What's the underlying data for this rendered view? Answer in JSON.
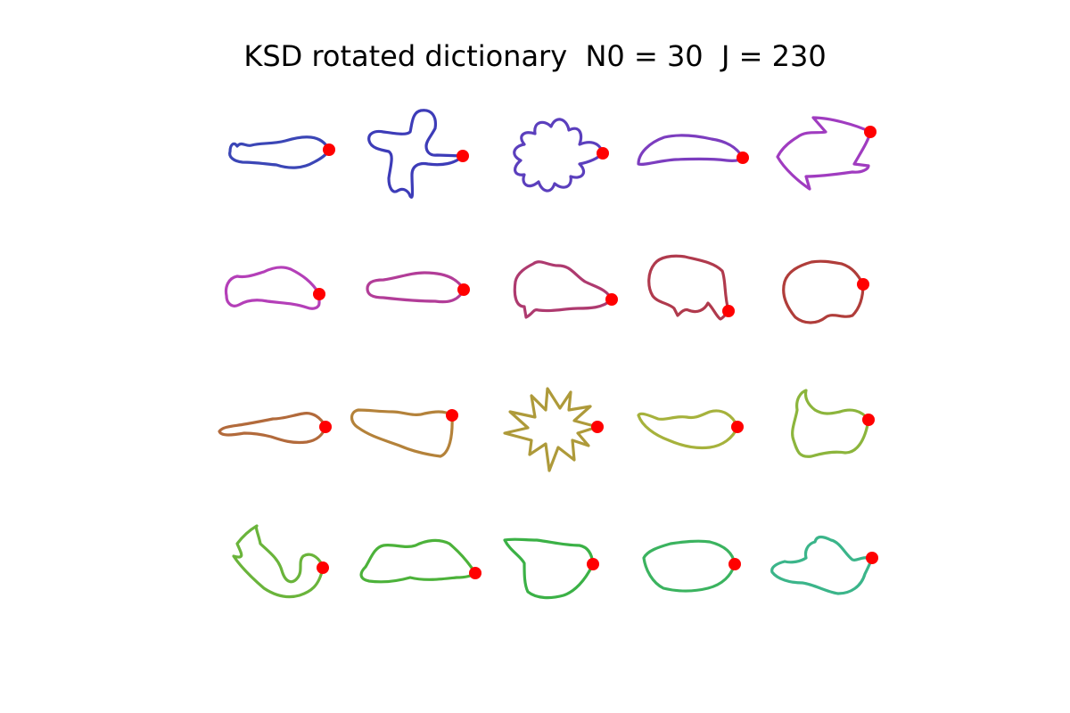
{
  "title": "KSD rotated dictionary  N0 = 30  J = 230",
  "marker_color": "#ff0000",
  "shapes": [
    {
      "name": "shape-r1c1-elongated-blob",
      "color": "#3b46b6"
    },
    {
      "name": "shape-r1c2-cross",
      "color": "#3d3cb8"
    },
    {
      "name": "shape-r1c3-flower",
      "color": "#5b3fbd"
    },
    {
      "name": "shape-r1c4-slender-leaf",
      "color": "#7c3dbf"
    },
    {
      "name": "shape-r1c5-zigzag-frame",
      "color": "#a03cc0"
    },
    {
      "name": "shape-r2c1-blob",
      "color": "#b43fb8"
    },
    {
      "name": "shape-r2c2-long-blob",
      "color": "#b23d98"
    },
    {
      "name": "shape-r2c3-animal",
      "color": "#ae3a6f"
    },
    {
      "name": "shape-r2c4-elephant",
      "color": "#b03a4d"
    },
    {
      "name": "shape-r2c5-round-blob",
      "color": "#b03d3a"
    },
    {
      "name": "shape-r3c1-tailed-blob",
      "color": "#b26a3b"
    },
    {
      "name": "shape-r3c2-wide-blob",
      "color": "#b4823a"
    },
    {
      "name": "shape-r3c3-star",
      "color": "#ae9a3a"
    },
    {
      "name": "shape-r3c4-swoosh",
      "color": "#a6b23c"
    },
    {
      "name": "shape-r3c5-bird",
      "color": "#8cb53c"
    },
    {
      "name": "shape-r4c1-rabbit",
      "color": "#6ab43b"
    },
    {
      "name": "shape-r4c2-butterfly",
      "color": "#4cb23a"
    },
    {
      "name": "shape-r4c3-pot",
      "color": "#3bb146"
    },
    {
      "name": "shape-r4c4-oval",
      "color": "#3bb35f"
    },
    {
      "name": "shape-r4c5-scrap",
      "color": "#3bb58a"
    }
  ]
}
